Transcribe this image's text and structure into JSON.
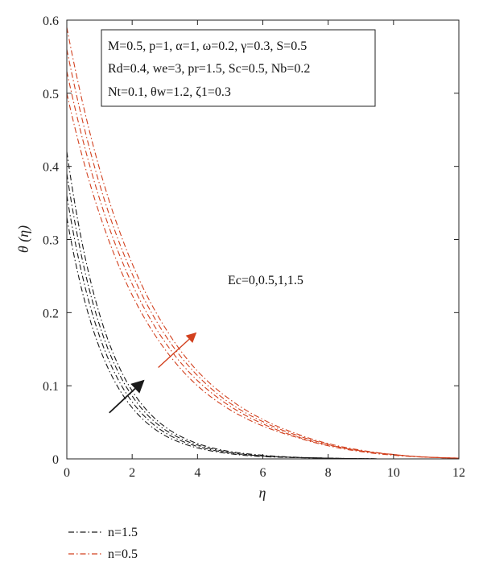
{
  "chart_data": {
    "type": "line",
    "title": "",
    "xlabel": "η",
    "ylabel": "θ (η)",
    "xlim": [
      0,
      12
    ],
    "ylim": [
      0,
      0.6
    ],
    "x_ticks": [
      "0",
      "2",
      "4",
      "6",
      "8",
      "10",
      "12"
    ],
    "y_ticks": [
      "0",
      "0.1",
      "0.2",
      "0.3",
      "0.4",
      "0.5",
      "0.6"
    ],
    "grid": false,
    "parameters": [
      "M=0.5, p=1, α=1, ω=0.2, γ=0.3, S=0.5",
      "Rd=0.4, we=3, pr=1.5, Sc=0.5, Nb=0.2",
      "Nt=0.1, θw=1.2, ζ1=0.3"
    ],
    "annotation": "Ec=0,0.5,1,1.5",
    "legend": [
      {
        "label": "n=1.5",
        "color": "#1a1a1a",
        "dash": "dashdot"
      },
      {
        "label": "n=0.5",
        "color": "#d2401e",
        "dash": "dashdot"
      }
    ],
    "series": [
      {
        "group": "n=1.5",
        "Ec": 0,
        "color": "#1a1a1a",
        "x": [
          0,
          1,
          2,
          3,
          4,
          5,
          6,
          8,
          10,
          12
        ],
        "y": [
          0.33,
          0.152,
          0.07,
          0.032,
          0.015,
          0.007,
          0.003,
          0.001,
          0.0,
          0.0
        ]
      },
      {
        "group": "n=1.5",
        "Ec": 0.5,
        "color": "#1a1a1a",
        "x": [
          0,
          1,
          2,
          3,
          4,
          5,
          6,
          8,
          10,
          12
        ],
        "y": [
          0.36,
          0.168,
          0.078,
          0.036,
          0.017,
          0.008,
          0.004,
          0.001,
          0.0,
          0.0
        ]
      },
      {
        "group": "n=1.5",
        "Ec": 1,
        "color": "#1a1a1a",
        "x": [
          0,
          1,
          2,
          3,
          4,
          5,
          6,
          8,
          10,
          12
        ],
        "y": [
          0.39,
          0.183,
          0.086,
          0.04,
          0.019,
          0.009,
          0.004,
          0.001,
          0.0,
          0.0
        ]
      },
      {
        "group": "n=1.5",
        "Ec": 1.5,
        "color": "#1a1a1a",
        "x": [
          0,
          1,
          2,
          3,
          4,
          5,
          6,
          8,
          10,
          12
        ],
        "y": [
          0.42,
          0.198,
          0.093,
          0.044,
          0.021,
          0.01,
          0.005,
          0.001,
          0.0,
          0.0
        ]
      },
      {
        "group": "n=0.5",
        "Ec": 0,
        "color": "#d2401e",
        "x": [
          0,
          1,
          2,
          3,
          4,
          5,
          6,
          7,
          8,
          9,
          10,
          12
        ],
        "y": [
          0.5,
          0.335,
          0.224,
          0.15,
          0.1,
          0.067,
          0.045,
          0.03,
          0.018,
          0.01,
          0.005,
          0.001
        ]
      },
      {
        "group": "n=0.5",
        "Ec": 0.5,
        "color": "#d2401e",
        "x": [
          0,
          1,
          2,
          3,
          4,
          5,
          6,
          7,
          8,
          9,
          10,
          12
        ],
        "y": [
          0.53,
          0.356,
          0.239,
          0.16,
          0.107,
          0.072,
          0.048,
          0.031,
          0.019,
          0.011,
          0.006,
          0.001
        ]
      },
      {
        "group": "n=0.5",
        "Ec": 1,
        "color": "#d2401e",
        "x": [
          0,
          1,
          2,
          3,
          4,
          5,
          6,
          7,
          8,
          9,
          10,
          12
        ],
        "y": [
          0.56,
          0.376,
          0.253,
          0.17,
          0.114,
          0.076,
          0.051,
          0.033,
          0.02,
          0.011,
          0.006,
          0.001
        ]
      },
      {
        "group": "n=0.5",
        "Ec": 1.5,
        "color": "#d2401e",
        "x": [
          0,
          1,
          2,
          3,
          4,
          5,
          6,
          7,
          8,
          9,
          10,
          12
        ],
        "y": [
          0.59,
          0.397,
          0.267,
          0.18,
          0.12,
          0.081,
          0.054,
          0.035,
          0.021,
          0.012,
          0.006,
          0.001
        ]
      }
    ],
    "arrows": [
      {
        "color": "#1a1a1a",
        "from": [
          1.3,
          0.063
        ],
        "to": [
          2.35,
          0.107
        ]
      },
      {
        "color": "#d2401e",
        "from": [
          2.8,
          0.125
        ],
        "to": [
          3.95,
          0.172
        ]
      }
    ]
  }
}
